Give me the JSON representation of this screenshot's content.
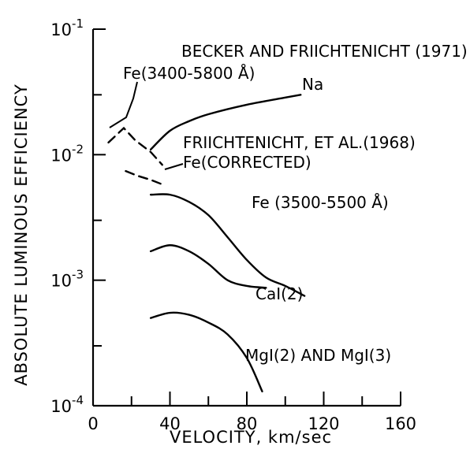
{
  "chart_data": {
    "type": "line",
    "xlabel": "VELOCITY, km/sec",
    "ylabel": "ABSOLUTE LUMINOUS EFFICIENCY",
    "xlim": [
      0,
      160
    ],
    "ylim": [
      0.0001,
      0.1
    ],
    "yscale": "log",
    "grid": false,
    "x_ticks": [
      "0",
      "40",
      "80",
      "120",
      "160"
    ],
    "y_ticks": [
      {
        "base": "10",
        "exp": "-1"
      },
      {
        "base": "10",
        "exp": "-2"
      },
      {
        "base": "10",
        "exp": "-3"
      },
      {
        "base": "10",
        "exp": "-4"
      }
    ],
    "series": [
      {
        "name": "Na",
        "style": "solid",
        "points": [
          [
            30,
            0.011
          ],
          [
            40,
            0.0155
          ],
          [
            50,
            0.0185
          ],
          [
            60,
            0.021
          ],
          [
            80,
            0.025
          ],
          [
            100,
            0.0285
          ],
          [
            108,
            0.03
          ]
        ]
      },
      {
        "name": "Fe (3400-5800 Å)",
        "style": "dashed",
        "points": [
          [
            8,
            0.0125
          ],
          [
            16,
            0.0163
          ],
          [
            22,
            0.013
          ],
          [
            30,
            0.0105
          ],
          [
            36,
            0.0083
          ]
        ]
      },
      {
        "name": "Fe (CORRECTED)",
        "style": "dashed",
        "points": [
          [
            17,
            0.0074
          ],
          [
            23,
            0.0068
          ],
          [
            30,
            0.0063
          ],
          [
            36,
            0.0058
          ]
        ]
      },
      {
        "name": "Fe (3500-5500 Å)",
        "style": "solid",
        "points": [
          [
            30,
            0.0048
          ],
          [
            40,
            0.0048
          ],
          [
            50,
            0.0042
          ],
          [
            60,
            0.0033
          ],
          [
            70,
            0.0022
          ],
          [
            80,
            0.00145
          ],
          [
            90,
            0.00105
          ],
          [
            100,
            0.0009
          ],
          [
            110,
            0.00075
          ]
        ]
      },
      {
        "name": "CaI(2)",
        "style": "solid",
        "points": [
          [
            30,
            0.0017
          ],
          [
            40,
            0.0019
          ],
          [
            50,
            0.0017
          ],
          [
            60,
            0.00135
          ],
          [
            70,
            0.001
          ],
          [
            80,
            0.0009
          ],
          [
            90,
            0.00087
          ]
        ]
      },
      {
        "name": "MgI(2) AND MgI(3)",
        "style": "solid",
        "points": [
          [
            30,
            0.0005
          ],
          [
            40,
            0.00055
          ],
          [
            50,
            0.00053
          ],
          [
            60,
            0.00046
          ],
          [
            70,
            0.00037
          ],
          [
            80,
            0.00024
          ],
          [
            88,
            0.00013
          ]
        ]
      }
    ],
    "annotations": [
      {
        "id": "becker",
        "text": "BECKER AND FRIICHTENICHT (1971)"
      },
      {
        "id": "fe_3400",
        "text": "Fe(3400-5800 Å)"
      },
      {
        "id": "na",
        "text": "Na"
      },
      {
        "id": "friichtenicht",
        "text": "FRIICHTENICHT, ET AL.(1968)"
      },
      {
        "id": "fe_corrected",
        "text": "Fe(CORRECTED)"
      },
      {
        "id": "fe_3500",
        "text": "Fe (3500-5500 Å)"
      },
      {
        "id": "cai",
        "text": "CaI(2)"
      },
      {
        "id": "mgi",
        "text": "MgI(2) AND MgI(3)"
      }
    ]
  }
}
